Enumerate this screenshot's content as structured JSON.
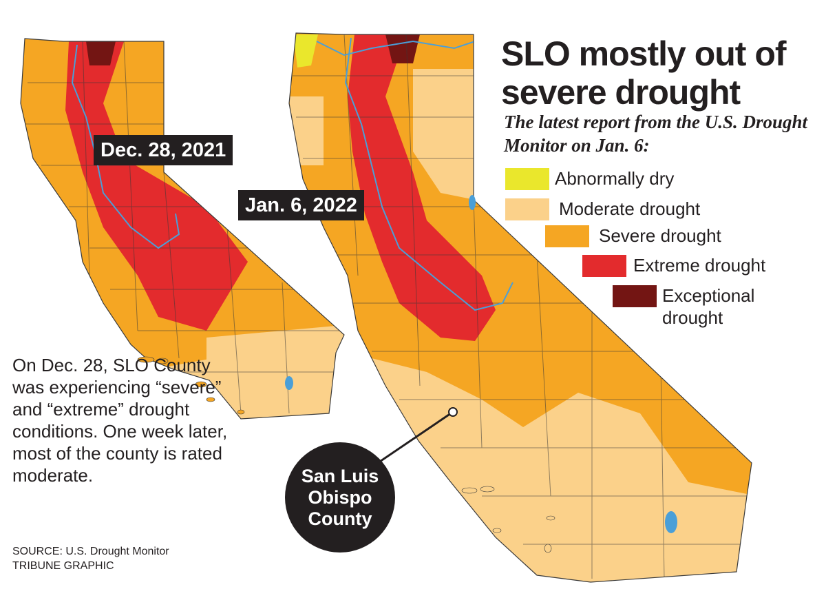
{
  "title": "SLO mostly out of severe drought",
  "subtitle": "The latest report from the U.S. Drought Monitor on Jan. 6:",
  "legend": [
    {
      "label": "Abnormally dry",
      "color": "#eae72c"
    },
    {
      "label": "Moderate drought",
      "color": "#fbd18a"
    },
    {
      "label": "Severe drought",
      "color": "#f5a623"
    },
    {
      "label": "Extreme drought",
      "color": "#e32b2d"
    },
    {
      "label": "Exceptional drought",
      "color": "#731513"
    }
  ],
  "maps": [
    {
      "date_label": "Dec. 28, 2021"
    },
    {
      "date_label": "Jan. 6, 2022"
    }
  ],
  "callout": "San Luis Obispo County",
  "note": "On Dec. 28, SLO County was experiencing “severe” and “extreme” drought conditions. One week later, most of the county is rated moderate.",
  "source": "SOURCE: U.S. Drought Monitor",
  "credit": "TRIBUNE GRAPHIC",
  "colors": {
    "water": "#4a9fd8",
    "county_lines": "#3a3a3a",
    "text": "#231f20"
  }
}
